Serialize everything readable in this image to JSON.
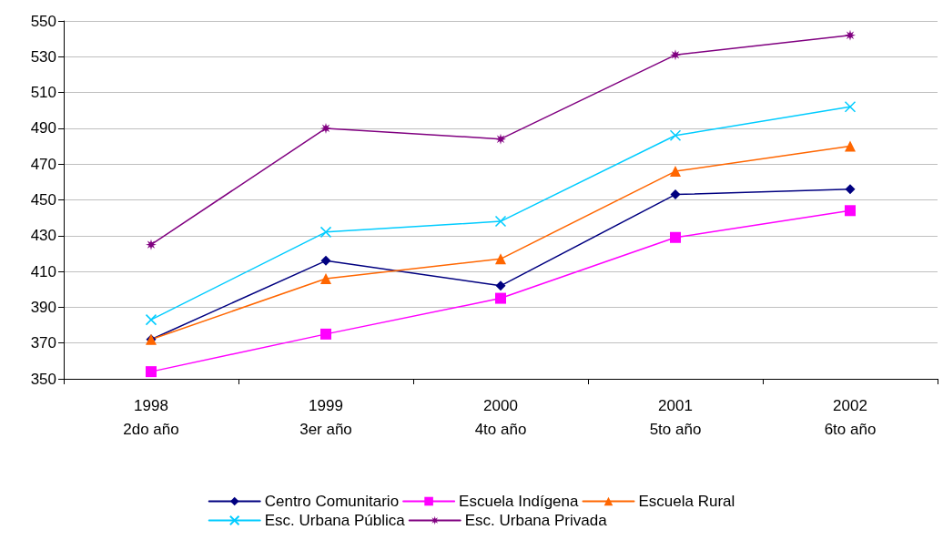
{
  "chart_data": {
    "type": "line",
    "categories": [
      "1998\n2do año",
      "1999\n3er año",
      "2000\n4to año",
      "2001\n5to año",
      "2002\n6to año"
    ],
    "series": [
      {
        "name": "Centro Comunitario",
        "color": "#000080",
        "marker": "diamond",
        "values": [
          372,
          416,
          402,
          453,
          456
        ]
      },
      {
        "name": "Escuela Indígena",
        "color": "#ff00ff",
        "marker": "square",
        "values": [
          354,
          375,
          395,
          429,
          444
        ]
      },
      {
        "name": "Escuela Rural",
        "color": "#ff6600",
        "marker": "triangle",
        "values": [
          372,
          406,
          417,
          466,
          480
        ]
      },
      {
        "name": "Esc. Urbana Pública",
        "color": "#00ccff",
        "marker": "cross",
        "values": [
          383,
          432,
          438,
          486,
          502
        ]
      },
      {
        "name": "Esc. Urbana Privada",
        "color": "#800080",
        "marker": "star",
        "values": [
          425,
          490,
          484,
          531,
          542
        ]
      }
    ],
    "ylim": [
      350,
      550
    ],
    "yticks": [
      350,
      370,
      390,
      410,
      430,
      450,
      470,
      490,
      510,
      530,
      550
    ],
    "grid": "y",
    "legend": "bottom",
    "line_style": "solid"
  }
}
